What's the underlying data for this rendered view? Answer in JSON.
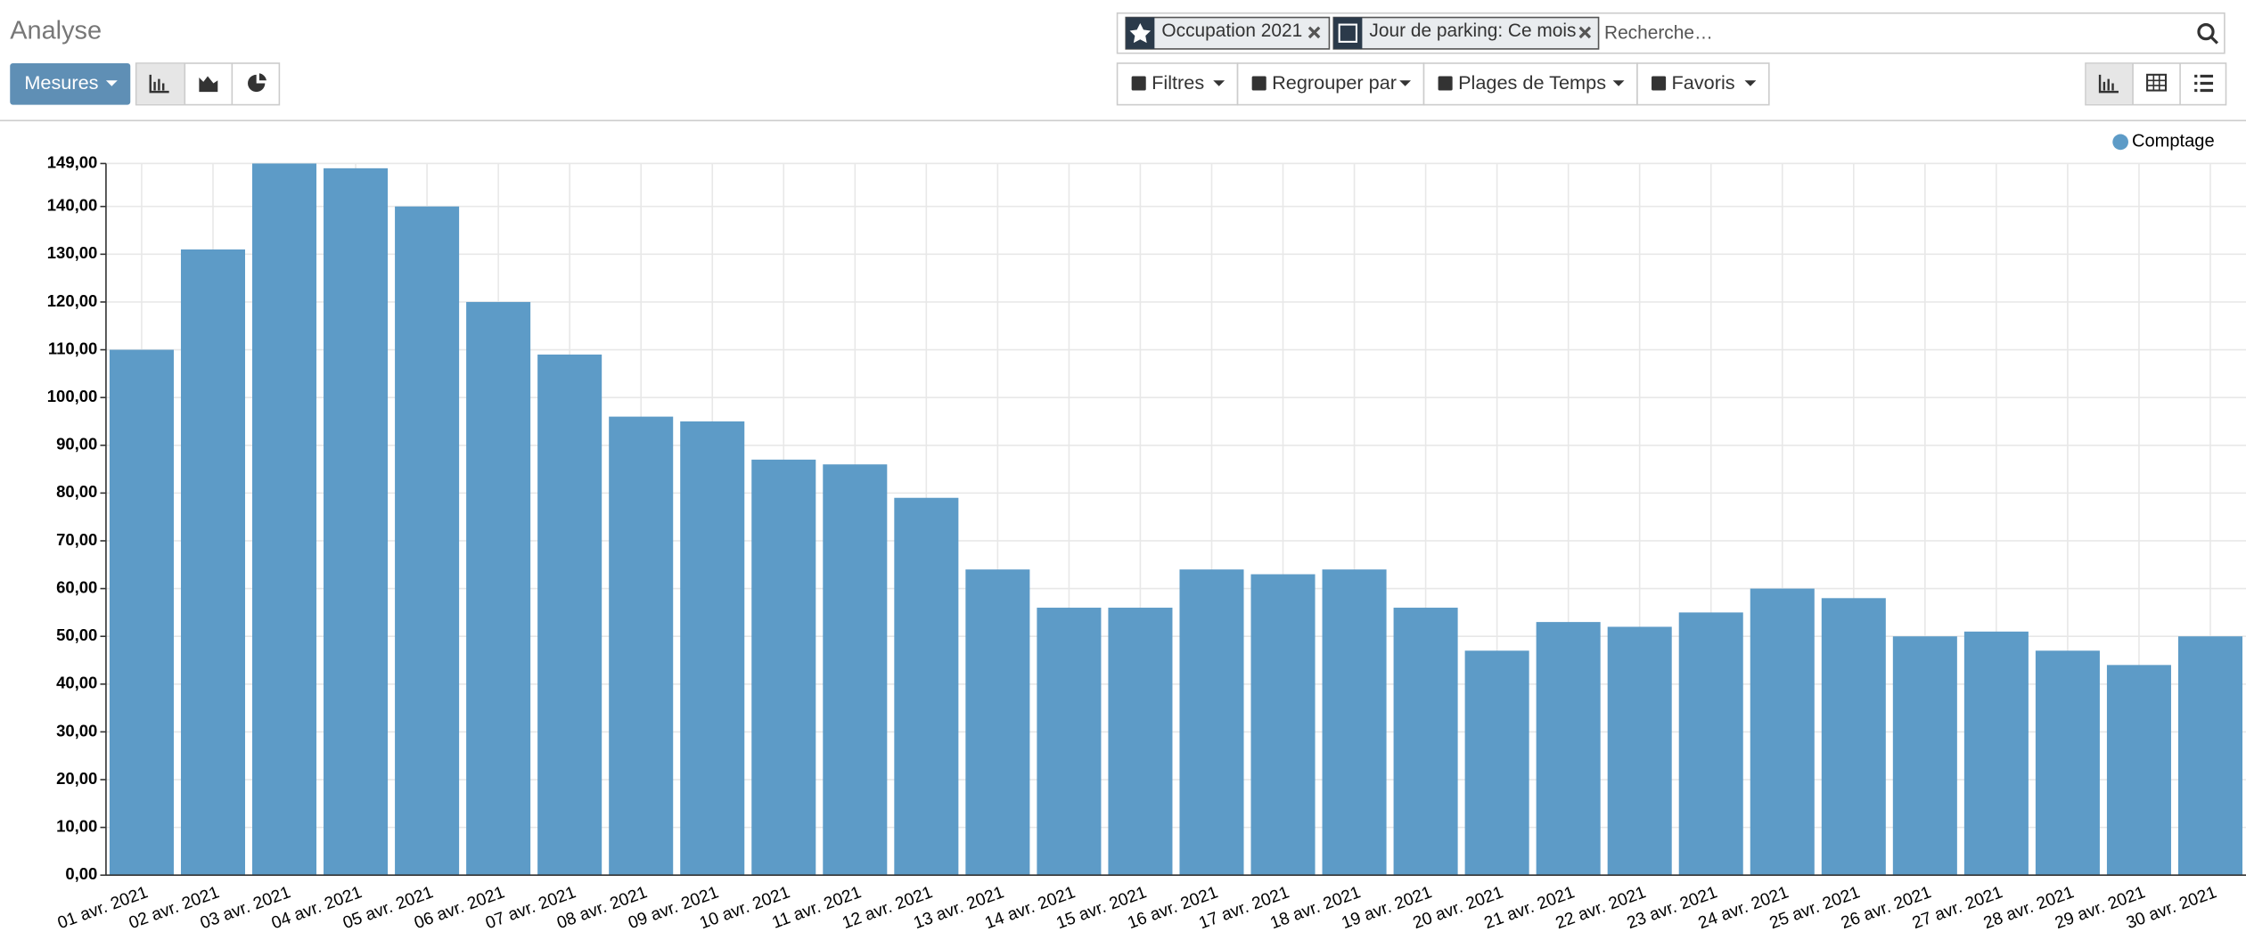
{
  "control_panel": {
    "title": "Analyse",
    "measures_button": "Mesures",
    "facets": [
      "Occupation 2021",
      "Jour de parking: Ce mois"
    ],
    "search_placeholder": "Recherche…",
    "filter_buttons": [
      "Filtres",
      "Regrouper par",
      "Plages de Temps",
      "Favoris"
    ]
  },
  "chart_data": {
    "type": "bar",
    "color": "#5d9bc7",
    "grid": true,
    "legend_position": "top-right",
    "series": [
      {
        "name": "Comptage",
        "color": "#5d9bc7",
        "values": [
          110,
          131,
          149,
          148,
          140,
          120,
          109,
          96,
          95,
          87,
          86,
          79,
          64,
          56,
          56,
          64,
          63,
          64,
          56,
          47,
          53,
          52,
          55,
          60,
          58,
          50,
          51,
          47,
          44,
          50
        ]
      }
    ],
    "categories": [
      "01 avr. 2021",
      "02 avr. 2021",
      "03 avr. 2021",
      "04 avr. 2021",
      "05 avr. 2021",
      "06 avr. 2021",
      "07 avr. 2021",
      "08 avr. 2021",
      "09 avr. 2021",
      "10 avr. 2021",
      "11 avr. 2021",
      "12 avr. 2021",
      "13 avr. 2021",
      "14 avr. 2021",
      "15 avr. 2021",
      "16 avr. 2021",
      "17 avr. 2021",
      "18 avr. 2021",
      "19 avr. 2021",
      "20 avr. 2021",
      "21 avr. 2021",
      "22 avr. 2021",
      "23 avr. 2021",
      "24 avr. 2021",
      "25 avr. 2021",
      "26 avr. 2021",
      "27 avr. 2021",
      "28 avr. 2021",
      "29 avr. 2021",
      "30 avr. 2021"
    ],
    "ylim": [
      0,
      149
    ],
    "yticks": [
      {
        "value": 0,
        "label": "0,00"
      },
      {
        "value": 10,
        "label": "10,00"
      },
      {
        "value": 20,
        "label": "20,00"
      },
      {
        "value": 30,
        "label": "30,00"
      },
      {
        "value": 40,
        "label": "40,00"
      },
      {
        "value": 50,
        "label": "50,00"
      },
      {
        "value": 60,
        "label": "60,00"
      },
      {
        "value": 70,
        "label": "70,00"
      },
      {
        "value": 80,
        "label": "80,00"
      },
      {
        "value": 90,
        "label": "90,00"
      },
      {
        "value": 100,
        "label": "100,00"
      },
      {
        "value": 110,
        "label": "110,00"
      },
      {
        "value": 120,
        "label": "120,00"
      },
      {
        "value": 130,
        "label": "130,00"
      },
      {
        "value": 140,
        "label": "140,00"
      },
      {
        "value": 149,
        "label": "149,00"
      }
    ]
  }
}
